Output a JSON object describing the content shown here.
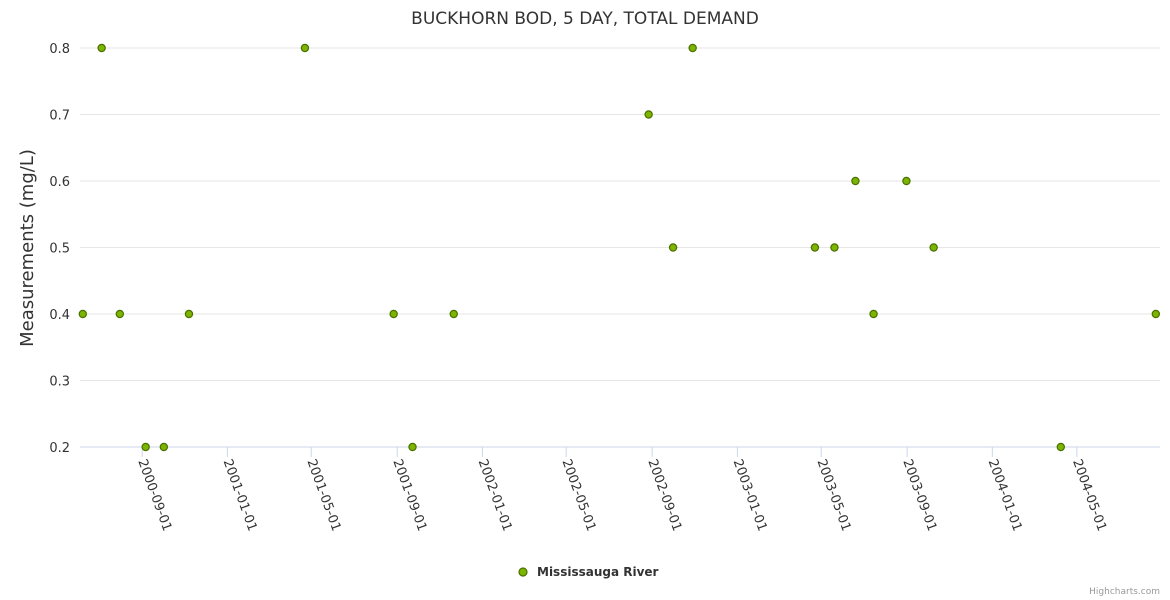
{
  "chart_data": {
    "type": "scatter",
    "title": "BUCKHORN BOD, 5 DAY, TOTAL DEMAND",
    "ylabel": "Measurements (mg/L)",
    "xlabel": "",
    "x_axis_type": "date",
    "xlim": [
      "2000-06-04",
      "2004-08-28"
    ],
    "ylim": [
      0.2,
      0.8
    ],
    "yticks": [
      0.2,
      0.3,
      0.4,
      0.5,
      0.6,
      0.7,
      0.8
    ],
    "xticks": [
      "2000-09-01",
      "2001-01-01",
      "2001-05-01",
      "2001-09-01",
      "2002-01-01",
      "2002-05-01",
      "2002-09-01",
      "2003-01-01",
      "2003-05-01",
      "2003-09-01",
      "2004-01-01",
      "2004-05-01"
    ],
    "grid": true,
    "legend_position": "bottom-center",
    "series": [
      {
        "name": "Mississauga River",
        "color": "#7cb500",
        "marker_edge": "#4a7000",
        "points": [
          {
            "x": "2000-06-08",
            "y": 0.4
          },
          {
            "x": "2000-07-05",
            "y": 0.8
          },
          {
            "x": "2000-07-31",
            "y": 0.4
          },
          {
            "x": "2000-09-06",
            "y": 0.2
          },
          {
            "x": "2000-10-02",
            "y": 0.2
          },
          {
            "x": "2000-11-07",
            "y": 0.4
          },
          {
            "x": "2001-04-22",
            "y": 0.8
          },
          {
            "x": "2001-08-27",
            "y": 0.4
          },
          {
            "x": "2001-09-23",
            "y": 0.2
          },
          {
            "x": "2001-11-21",
            "y": 0.4
          },
          {
            "x": "2002-08-27",
            "y": 0.7
          },
          {
            "x": "2002-10-01",
            "y": 0.5
          },
          {
            "x": "2002-10-29",
            "y": 0.8
          },
          {
            "x": "2003-04-22",
            "y": 0.5
          },
          {
            "x": "2003-05-20",
            "y": 0.5
          },
          {
            "x": "2003-06-19",
            "y": 0.6
          },
          {
            "x": "2003-07-15",
            "y": 0.4
          },
          {
            "x": "2003-08-31",
            "y": 0.6
          },
          {
            "x": "2003-10-09",
            "y": 0.5
          },
          {
            "x": "2004-04-08",
            "y": 0.2
          },
          {
            "x": "2004-08-22",
            "y": 0.4
          }
        ]
      }
    ]
  },
  "credits": "Highcharts.com"
}
